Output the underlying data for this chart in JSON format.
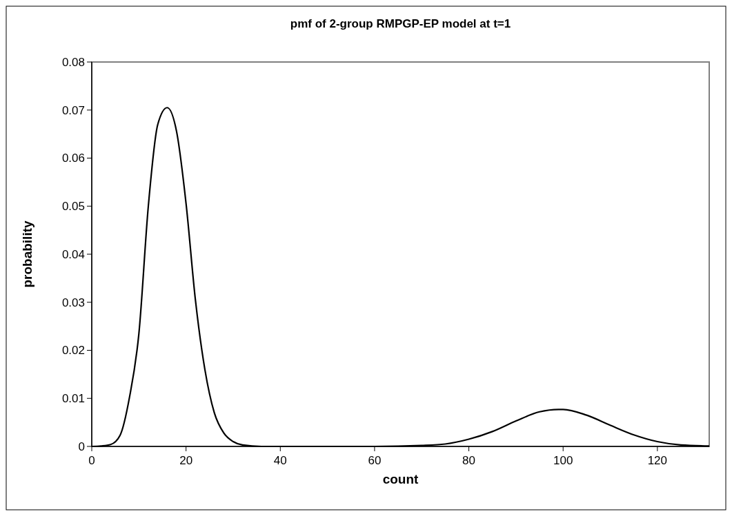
{
  "chart_data": {
    "type": "line",
    "title": "pmf of 2-group RMPGP-EP model at t=1",
    "xlabel": "count",
    "ylabel": "probability",
    "x": [
      0,
      2,
      4,
      6,
      8,
      10,
      12,
      14,
      16,
      18,
      20,
      22,
      24,
      26,
      28,
      30,
      32,
      36,
      40,
      50,
      60,
      70,
      75,
      80,
      85,
      90,
      95,
      99,
      100,
      105,
      110,
      115,
      120,
      125,
      131
    ],
    "series": [
      {
        "color": "#000000",
        "values": [
          0,
          0.0001,
          0.0004,
          0.0023,
          0.0102,
          0.0235,
          0.05,
          0.067,
          0.0705,
          0.0655,
          0.0506,
          0.0304,
          0.016,
          0.007,
          0.0028,
          0.001,
          0.0003,
          0,
          0,
          0,
          0,
          0.0002,
          0.0005,
          0.0015,
          0.0031,
          0.0053,
          0.0072,
          0.0077,
          0.0077,
          0.0065,
          0.0044,
          0.0024,
          0.001,
          0.0003,
          0.0001
        ]
      }
    ],
    "xlim": [
      0,
      131
    ],
    "xticks": [
      0,
      20,
      40,
      60,
      80,
      100,
      120
    ],
    "ylim": [
      0,
      0.08
    ],
    "yticks": [
      0,
      0.01,
      0.02,
      0.03,
      0.04,
      0.05,
      0.06,
      0.07,
      0.08
    ],
    "grid": false,
    "marker": "none",
    "line_style": "solid"
  }
}
